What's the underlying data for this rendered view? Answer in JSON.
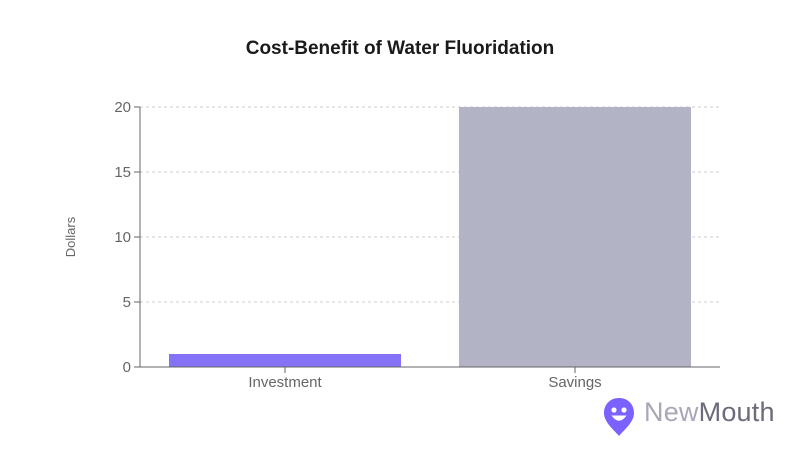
{
  "chart_data": {
    "type": "bar",
    "title": "Cost-Benefit of Water Fluoridation",
    "xlabel": "",
    "ylabel": "Dollars",
    "categories": [
      "Investment",
      "Savings"
    ],
    "values": [
      1,
      20
    ],
    "colors": [
      "#8472f7",
      "#b3b3c6"
    ],
    "ylim": [
      0,
      20
    ],
    "yticks": [
      0,
      5,
      10,
      15,
      20
    ],
    "grid": true,
    "legend": "none"
  },
  "logo": {
    "part1": "New",
    "part2": "Mouth",
    "icon": "smiley-pin-icon",
    "color": "#7b61ff"
  }
}
